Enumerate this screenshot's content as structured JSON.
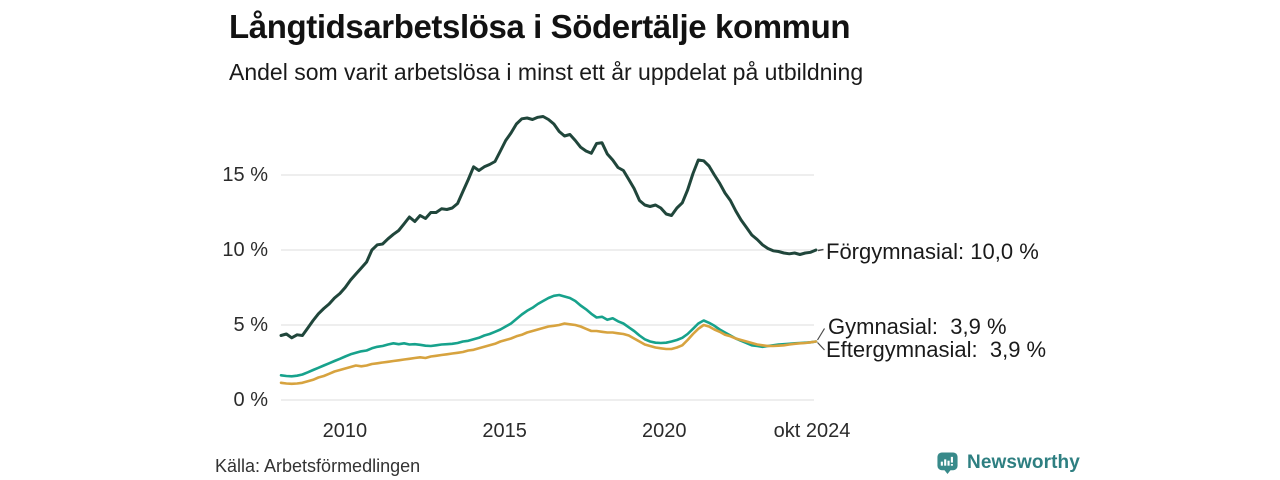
{
  "header": {
    "title": "Långtidsarbetslösa i Södertälje kommun",
    "subtitle": "Andel som varit arbetslösa i minst ett år uppdelat på utbildning"
  },
  "footer": {
    "source": "Källa: Arbetsförmedlingen",
    "brand": "Newsworthy",
    "brand_color": "#2e7f81",
    "brand_icon": "bar-chart-speech-bubble-icon"
  },
  "chart_data": {
    "type": "line",
    "title": "Långtidsarbetslösa i Södertälje kommun",
    "subtitle": "Andel som varit arbetslösa i minst ett år uppdelat på utbildning",
    "x_start": "2008-01",
    "x_end": "2024-10",
    "months_total": 202,
    "sample_step_months": 2,
    "ylim": [
      0,
      19.5
    ],
    "grid_on": true,
    "grid_color": "#e3e3e3",
    "y_ticks": [
      {
        "value": 0,
        "label": "0 %"
      },
      {
        "value": 5,
        "label": "5 %"
      },
      {
        "value": 10,
        "label": "10 %"
      },
      {
        "value": 15,
        "label": "15 %"
      }
    ],
    "x_ticks": [
      {
        "month": 24,
        "label": "2010"
      },
      {
        "month": 84,
        "label": "2015"
      },
      {
        "month": 144,
        "label": "2020"
      },
      {
        "month": 201,
        "label": "okt 2024"
      }
    ],
    "legend_position": "right-end-labels",
    "series": [
      {
        "id": "forgymnasial",
        "name": "Förgymnasial",
        "color": "#20463b",
        "stroke_width": 3,
        "end_value": 10.0,
        "end_label": "Förgymnasial: 10,0 %",
        "values": [
          4.3,
          4.4,
          4.15,
          4.35,
          4.3,
          4.8,
          5.3,
          5.75,
          6.1,
          6.4,
          6.8,
          7.1,
          7.5,
          8.0,
          8.4,
          8.8,
          9.2,
          10.0,
          10.35,
          10.4,
          10.75,
          11.05,
          11.3,
          11.75,
          12.2,
          11.9,
          12.3,
          12.1,
          12.5,
          12.5,
          12.75,
          12.7,
          12.8,
          13.1,
          13.9,
          14.7,
          15.55,
          15.3,
          15.55,
          15.7,
          15.9,
          16.6,
          17.3,
          17.8,
          18.4,
          18.75,
          18.8,
          18.7,
          18.85,
          18.9,
          18.7,
          18.4,
          17.9,
          17.6,
          17.7,
          17.3,
          16.85,
          16.6,
          16.45,
          17.1,
          17.15,
          16.4,
          16.0,
          15.5,
          15.3,
          14.7,
          14.1,
          13.3,
          13.0,
          12.9,
          13.0,
          12.8,
          12.4,
          12.3,
          12.8,
          13.15,
          14.0,
          15.1,
          16.0,
          15.95,
          15.6,
          15.0,
          14.45,
          13.8,
          13.3,
          12.6,
          12.0,
          11.5,
          11.0,
          10.7,
          10.35,
          10.1,
          9.95,
          9.9,
          9.8,
          9.75,
          9.8,
          9.7,
          9.8,
          9.85,
          10.0
        ]
      },
      {
        "id": "gymnasial",
        "name": "Gymnasial",
        "color": "#17a28c",
        "stroke_width": 2.6,
        "end_value": 3.9,
        "end_label": "Gymnasial:  3,9 %",
        "values": [
          1.65,
          1.6,
          1.58,
          1.62,
          1.7,
          1.85,
          2.0,
          2.15,
          2.3,
          2.45,
          2.6,
          2.75,
          2.9,
          3.05,
          3.15,
          3.25,
          3.3,
          3.45,
          3.55,
          3.6,
          3.7,
          3.78,
          3.72,
          3.78,
          3.7,
          3.72,
          3.68,
          3.62,
          3.6,
          3.65,
          3.7,
          3.72,
          3.75,
          3.8,
          3.9,
          3.95,
          4.05,
          4.15,
          4.3,
          4.4,
          4.55,
          4.7,
          4.9,
          5.1,
          5.4,
          5.7,
          5.95,
          6.15,
          6.4,
          6.6,
          6.8,
          6.95,
          7.0,
          6.9,
          6.8,
          6.6,
          6.3,
          6.05,
          5.75,
          5.5,
          5.55,
          5.35,
          5.45,
          5.25,
          5.1,
          4.85,
          4.6,
          4.3,
          4.05,
          3.9,
          3.82,
          3.8,
          3.82,
          3.9,
          4.0,
          4.15,
          4.4,
          4.75,
          5.1,
          5.3,
          5.15,
          4.95,
          4.7,
          4.5,
          4.3,
          4.1,
          3.95,
          3.8,
          3.65,
          3.6,
          3.55,
          3.6,
          3.65,
          3.7,
          3.72,
          3.75,
          3.78,
          3.8,
          3.82,
          3.85,
          3.9
        ]
      },
      {
        "id": "eftergymnasial",
        "name": "Eftergymnasial",
        "color": "#d7a33f",
        "stroke_width": 2.6,
        "end_value": 3.9,
        "end_label": "Eftergymnasial:  3,9 %",
        "values": [
          1.15,
          1.1,
          1.08,
          1.1,
          1.15,
          1.25,
          1.35,
          1.5,
          1.6,
          1.75,
          1.9,
          2.0,
          2.1,
          2.2,
          2.3,
          2.25,
          2.3,
          2.4,
          2.45,
          2.5,
          2.55,
          2.6,
          2.65,
          2.7,
          2.75,
          2.8,
          2.85,
          2.8,
          2.9,
          2.95,
          3.0,
          3.05,
          3.1,
          3.15,
          3.2,
          3.3,
          3.35,
          3.45,
          3.55,
          3.65,
          3.75,
          3.9,
          4.0,
          4.1,
          4.25,
          4.35,
          4.5,
          4.6,
          4.7,
          4.8,
          4.9,
          4.95,
          5.0,
          5.1,
          5.05,
          5.0,
          4.9,
          4.75,
          4.6,
          4.6,
          4.55,
          4.5,
          4.5,
          4.45,
          4.4,
          4.3,
          4.1,
          3.9,
          3.7,
          3.6,
          3.5,
          3.45,
          3.4,
          3.4,
          3.5,
          3.65,
          4.0,
          4.4,
          4.75,
          5.0,
          4.9,
          4.7,
          4.55,
          4.35,
          4.25,
          4.1,
          4.0,
          3.9,
          3.8,
          3.7,
          3.65,
          3.6,
          3.6,
          3.62,
          3.65,
          3.7,
          3.75,
          3.78,
          3.8,
          3.85,
          3.9
        ]
      }
    ]
  }
}
